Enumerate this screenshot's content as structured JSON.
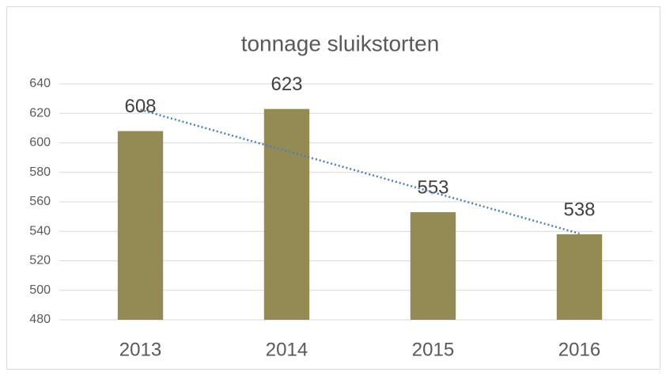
{
  "chart_data": {
    "type": "bar",
    "title": "tonnage sluikstorten",
    "categories": [
      "2013",
      "2014",
      "2015",
      "2016"
    ],
    "values": [
      608,
      623,
      553,
      538
    ],
    "color": "#948a54",
    "ylim": [
      480,
      640
    ],
    "yticks": [
      480,
      500,
      520,
      540,
      560,
      580,
      600,
      620,
      640
    ],
    "grid": true,
    "trendline": "linear",
    "trendline_color": "#4a7ebb"
  }
}
